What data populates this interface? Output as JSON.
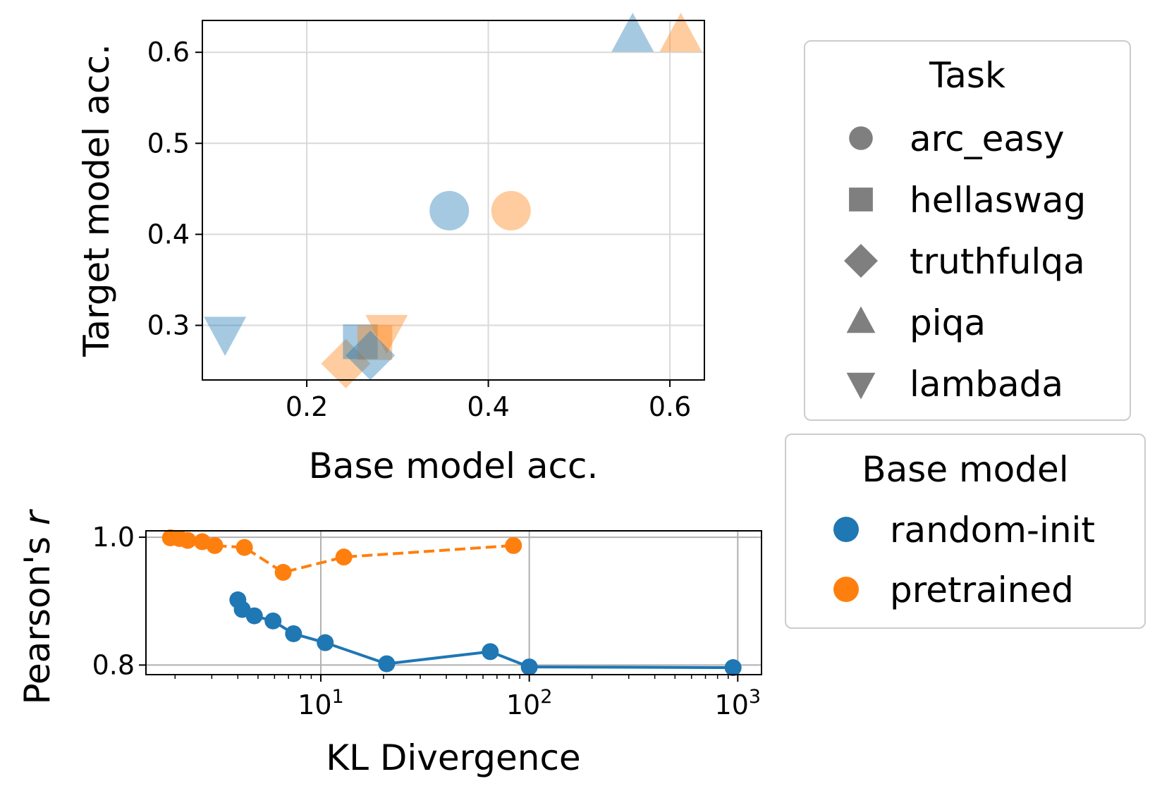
{
  "colors": {
    "random_init": "#1f77b4",
    "pretrained": "#ff7f0e",
    "random_init_light": "#a6c8e1",
    "pretrained_light": "#ffcca2",
    "task_marker": "#7f7f7f",
    "grid": "#d9d9d9",
    "legend_border": "#cccccc"
  },
  "chart_data": [
    {
      "type": "scatter",
      "xlabel": "Base model acc.",
      "ylabel": "Target model acc.",
      "xlim": [
        0.085,
        0.638
      ],
      "ylim": [
        0.24,
        0.635
      ],
      "xticks": [
        0.2,
        0.4,
        0.6
      ],
      "xtick_labels": [
        "0.2",
        "0.4",
        "0.6"
      ],
      "yticks": [
        0.3,
        0.4,
        0.5,
        0.6
      ],
      "ytick_labels": [
        "0.3",
        "0.4",
        "0.5",
        "0.6"
      ],
      "grid": true,
      "points": [
        {
          "task": "lambada",
          "model": "random-init",
          "x": 0.11,
          "y": 0.292
        },
        {
          "task": "truthfulqa",
          "model": "pretrained",
          "x": 0.243,
          "y": 0.258
        },
        {
          "task": "hellaswag",
          "model": "random-init",
          "x": 0.259,
          "y": 0.282
        },
        {
          "task": "hellaswag",
          "model": "pretrained",
          "x": 0.275,
          "y": 0.281
        },
        {
          "task": "lambada",
          "model": "pretrained",
          "x": 0.288,
          "y": 0.294
        },
        {
          "task": "truthfulqa",
          "model": "random-init",
          "x": 0.27,
          "y": 0.267
        },
        {
          "task": "arc_easy",
          "model": "random-init",
          "x": 0.357,
          "y": 0.426
        },
        {
          "task": "arc_easy",
          "model": "pretrained",
          "x": 0.425,
          "y": 0.426
        },
        {
          "task": "piqa",
          "model": "random-init",
          "x": 0.559,
          "y": 0.618
        },
        {
          "task": "piqa",
          "model": "pretrained",
          "x": 0.612,
          "y": 0.618
        }
      ]
    },
    {
      "type": "line",
      "xscale": "log",
      "xlabel": "KL Divergence",
      "ylabel_prefix": "Pearson's ",
      "ylabel_var": "r",
      "xlim": [
        1.45,
        1300
      ],
      "ylim": [
        0.785,
        1.01
      ],
      "xtick_labels": [
        {
          "base": "10",
          "exp": "1",
          "value": 10
        },
        {
          "base": "10",
          "exp": "2",
          "value": 100
        },
        {
          "base": "10",
          "exp": "3",
          "value": 1000
        }
      ],
      "yticks": [
        0.8,
        1.0
      ],
      "ytick_labels": [
        "0.8",
        "1.0"
      ],
      "grid": true,
      "series": [
        {
          "name": "random-init",
          "style": "solid",
          "x": [
            4.0,
            4.2,
            4.8,
            5.9,
            7.4,
            10.5,
            20.7,
            65,
            100,
            950
          ],
          "y": [
            0.902,
            0.887,
            0.877,
            0.869,
            0.849,
            0.835,
            0.802,
            0.821,
            0.797,
            0.796
          ]
        },
        {
          "name": "pretrained",
          "style": "dashed",
          "x": [
            1.9,
            2.1,
            2.3,
            2.7,
            3.1,
            4.3,
            6.6,
            12.9,
            84
          ],
          "y": [
            0.999,
            0.998,
            0.995,
            0.993,
            0.987,
            0.984,
            0.945,
            0.969,
            0.987
          ]
        }
      ]
    }
  ],
  "legend_task": {
    "title": "Task",
    "items": [
      {
        "label": "arc_easy",
        "marker": "circle"
      },
      {
        "label": "hellaswag",
        "marker": "square"
      },
      {
        "label": "truthfulqa",
        "marker": "diamond"
      },
      {
        "label": "piqa",
        "marker": "triangle-up"
      },
      {
        "label": "lambada",
        "marker": "triangle-down"
      }
    ]
  },
  "legend_model": {
    "title": "Base model",
    "items": [
      {
        "label": "random-init"
      },
      {
        "label": "pretrained"
      }
    ]
  }
}
